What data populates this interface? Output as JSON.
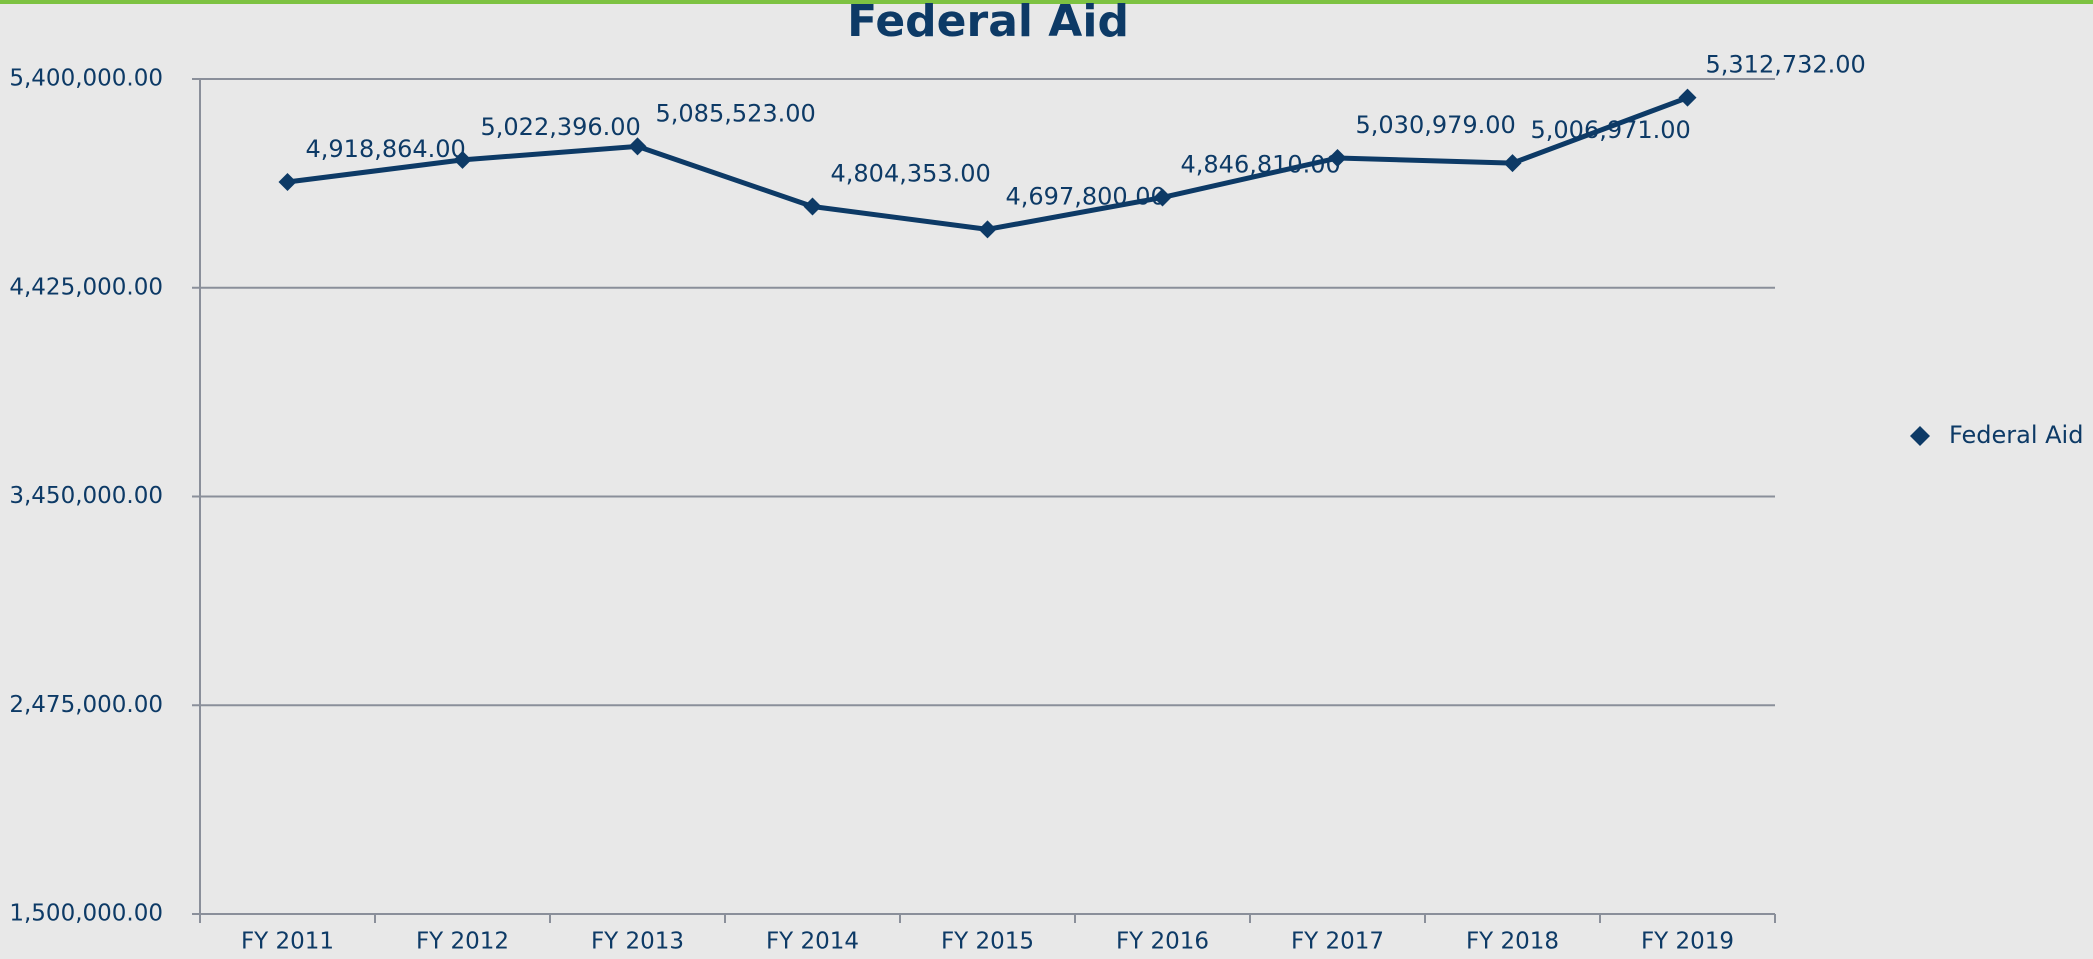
{
  "chart_data": {
    "type": "line",
    "title": "Federal Aid",
    "categories": [
      "FY 2011",
      "FY 2012",
      "FY 2013",
      "FY 2014",
      "FY 2015",
      "FY 2016",
      "FY 2017",
      "FY 2018",
      "FY 2019"
    ],
    "series": [
      {
        "name": "Federal Aid",
        "color": "#0d3a66",
        "values": [
          4918864,
          5022396,
          5085523,
          4804353,
          4697800,
          4846810,
          5030979,
          5006971,
          5312732
        ],
        "value_labels": [
          "4,918,864.00",
          "5,022,396.00",
          "5,085,523.00",
          "4,804,353.00",
          "4,697,800.00",
          "4,846,810.00",
          "5,030,979.00",
          "5,006,971.00",
          "5,312,732.00"
        ]
      }
    ],
    "ylim": [
      1500000,
      5400000
    ],
    "yticks": [
      {
        "value": 1500000,
        "label": "1,500,000.00"
      },
      {
        "value": 2475000,
        "label": "2,475,000.00"
      },
      {
        "value": 3450000,
        "label": "3,450,000.00"
      },
      {
        "value": 4425000,
        "label": "4,425,000.00"
      },
      {
        "value": 5400000,
        "label": "5,400,000.00"
      }
    ],
    "grid": true,
    "legend": "right"
  }
}
